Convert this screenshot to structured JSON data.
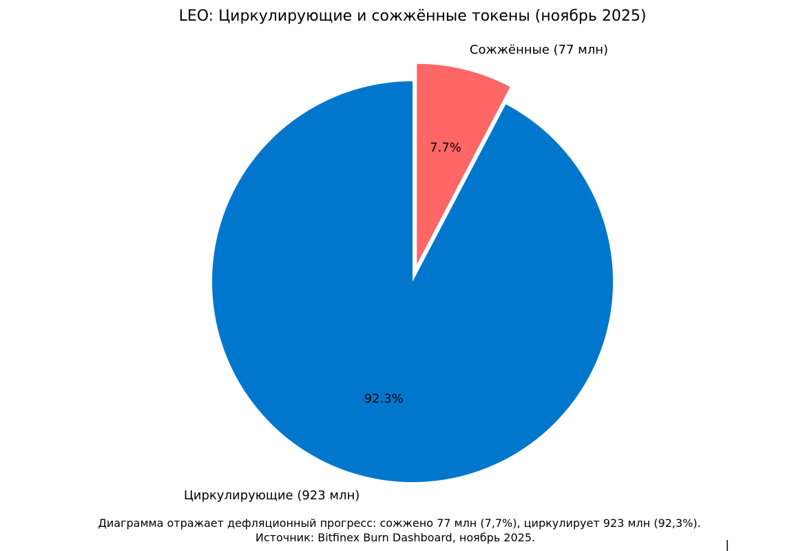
{
  "chart_data": {
    "type": "pie",
    "title": "LEO: Циркулирующие и сожжённые токены (ноябрь 2025)",
    "slices": [
      {
        "label": "Сожжённые (77 млн)",
        "value": 77,
        "pct_label": "7.7%",
        "color": "#FF6666",
        "exploded": true
      },
      {
        "label": "Циркулирующие (923 млн)",
        "value": 923,
        "pct_label": "92.3%",
        "color": "#0077CC",
        "exploded": false
      }
    ],
    "start_angle": "top",
    "direction": "clockwise",
    "caption_line1": "Диаграмма отражает дефляционный прогресс: сожжено 77 млн (7,7%), циркулирует 923 млн (92,3%).",
    "caption_line2": "Источник: Bitfinex Burn Dashboard, ноябрь 2025."
  }
}
